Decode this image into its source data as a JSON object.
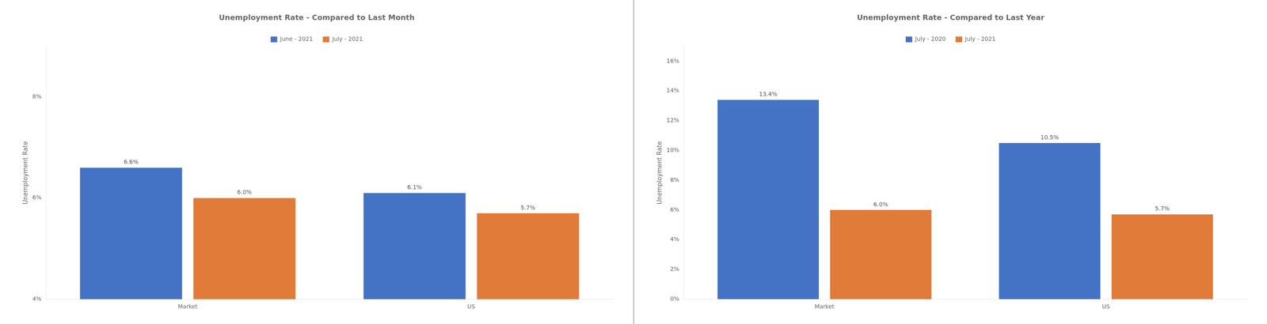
{
  "chart_data": [
    {
      "type": "bar",
      "title": "Unemployment Rate - Compared to Last Month",
      "ylabel": "Unemployment Rate",
      "categories": [
        "Market",
        "US"
      ],
      "series": [
        {
          "name": "June - 2021",
          "color": "#4472C4",
          "values": [
            6.6,
            6.1
          ],
          "value_labels": [
            "6.6%",
            "6.1%"
          ]
        },
        {
          "name": "July - 2021",
          "color": "#E07B39",
          "values": [
            6.0,
            5.7
          ],
          "value_labels": [
            "6.0%",
            "5.7%"
          ]
        }
      ],
      "ylim": [
        4.0,
        9.0
      ],
      "yticks": [
        {
          "value": 4.0,
          "label": "4%"
        },
        {
          "value": 6.0,
          "label": "6%"
        },
        {
          "value": 8.0,
          "label": "8%"
        }
      ],
      "grid": false,
      "legend": "top",
      "data_labels": true
    },
    {
      "type": "bar",
      "title": "Unemployment Rate - Compared to Last Year",
      "ylabel": "Unemployment Rate",
      "categories": [
        "Market",
        "US"
      ],
      "series": [
        {
          "name": "July - 2020",
          "color": "#4472C4",
          "values": [
            13.4,
            10.5
          ],
          "value_labels": [
            "13.4%",
            "10.5%"
          ]
        },
        {
          "name": "July - 2021",
          "color": "#E07B39",
          "values": [
            6.0,
            5.7
          ],
          "value_labels": [
            "6.0%",
            "5.7%"
          ]
        }
      ],
      "ylim": [
        0.0,
        17.0
      ],
      "yticks": [
        {
          "value": 0.0,
          "label": "0%"
        },
        {
          "value": 2.0,
          "label": "2%"
        },
        {
          "value": 4.0,
          "label": "4%"
        },
        {
          "value": 6.0,
          "label": "6%"
        },
        {
          "value": 8.0,
          "label": "8%"
        },
        {
          "value": 10.0,
          "label": "10%"
        },
        {
          "value": 12.0,
          "label": "12%"
        },
        {
          "value": 14.0,
          "label": "14%"
        },
        {
          "value": 16.0,
          "label": "16%"
        }
      ],
      "grid": false,
      "legend": "top",
      "data_labels": true
    }
  ]
}
